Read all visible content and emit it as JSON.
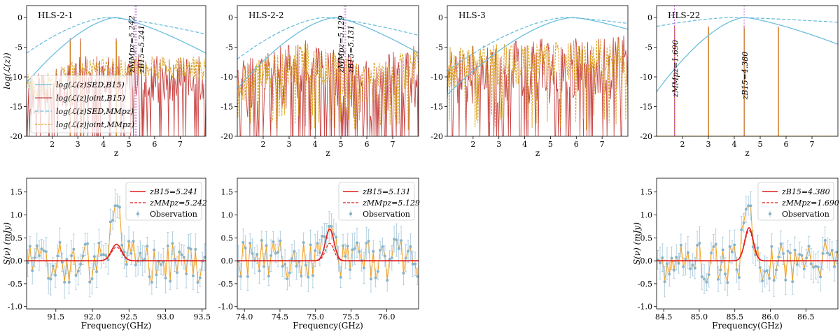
{
  "chart_data": [
    {
      "type": "line",
      "panel": "top",
      "name": "HLS-2-1",
      "xlabel": "z",
      "ylabel": "log(ℒ(z))",
      "xlim": [
        1.0,
        8.0
      ],
      "ylim": [
        -20,
        2
      ],
      "xticks": [
        2,
        3,
        4,
        5,
        6,
        7
      ],
      "yticks": [
        0,
        -5,
        -10,
        -15,
        -20
      ],
      "annotations": [
        {
          "text": "zMMpz=5.242",
          "z": 5.242
        },
        {
          "text": "zB15=5.241",
          "z": 5.241
        }
      ],
      "legend": [
        "log(ℒ(z)SED,B15)",
        "log(ℒ(z)joint,B15)",
        "log(ℒ(z)SED,MMpz)",
        "log(ℒ(z)joint,MMpz)"
      ],
      "legend_position": "lower-left",
      "sed_b15": {
        "peak": 4.5,
        "lo_at_1": -11,
        "hi_at_8": -6
      },
      "sed_mmpz": {
        "peak": 4.2,
        "lo_at_1": -6,
        "hi_at_8": -2.8
      },
      "joint_mmpz_level": -9.5,
      "joint_b15_level": -12,
      "spikes": [
        2.7,
        3.1,
        4.5
      ]
    },
    {
      "type": "line",
      "panel": "top",
      "name": "HLS-2-2",
      "xlabel": "z",
      "xlim": [
        1.0,
        8.0
      ],
      "ylim": [
        -20,
        2
      ],
      "xticks": [
        2,
        3,
        4,
        5,
        6,
        7
      ],
      "yticks": [
        0,
        -5,
        -10,
        -15,
        -20
      ],
      "annotations": [
        {
          "text": "zMMpz=5.129",
          "z": 5.129
        },
        {
          "text": "zB15=5.131",
          "z": 5.131
        }
      ],
      "sed_b15": {
        "peak": 4.8,
        "lo_at_1": -12,
        "hi_at_8": -6
      },
      "sed_mmpz": {
        "peak": 4.4,
        "lo_at_1": -7,
        "hi_at_8": -3
      }
    },
    {
      "type": "line",
      "panel": "top",
      "name": "HLS-3",
      "xlabel": "z",
      "xlim": [
        1.0,
        8.0
      ],
      "ylim": [
        -20,
        2
      ],
      "xticks": [
        2,
        3,
        4,
        5,
        6,
        7
      ],
      "yticks": [
        0,
        -5,
        -10,
        -15,
        -20
      ],
      "annotations": [],
      "sed_b15": {
        "peak": 5.9,
        "lo_at_1": -13,
        "hi_at_8": -2
      },
      "sed_mmpz": {
        "peak": 5.6,
        "lo_at_1": -9,
        "hi_at_8": -1
      }
    },
    {
      "type": "line",
      "panel": "top",
      "name": "HLS-22",
      "xlabel": "z",
      "xlim": [
        1.0,
        8.0
      ],
      "ylim": [
        -20,
        2
      ],
      "xticks": [
        2,
        3,
        4,
        5,
        6,
        7
      ],
      "yticks": [
        0,
        -5,
        -10,
        -15,
        -20
      ],
      "annotations": [
        {
          "text": "zMMpz=1.690",
          "z": 1.69
        },
        {
          "text": "zB15=4.380",
          "z": 4.38
        }
      ],
      "sed_b15": {
        "peak": 4.4,
        "lo_at_1": -12.5,
        "hi_at_8": -4.5
      },
      "sed_mmpz": {
        "peak": 4.0,
        "lo_at_1": -1.5,
        "hi_at_8": -0.8
      },
      "spikes": [
        1.69,
        3.0,
        4.38,
        5.7
      ]
    },
    {
      "type": "line",
      "panel": "bottom",
      "name": "HLS-2-1 spectrum",
      "xlabel": "Frequency(GHz)",
      "ylabel": "S(ν) (mJy)",
      "xlim": [
        91.1,
        93.55
      ],
      "ylim": [
        -1.05,
        1.8
      ],
      "xticks": [
        91.5,
        92.0,
        92.5,
        93.0,
        93.5
      ],
      "yticks": [
        1.5,
        1.0,
        0.5,
        0.0,
        -0.5,
        -1.0
      ],
      "legend": [
        "zB15=5.241",
        "zMMpz=5.242",
        "Observation"
      ],
      "legend_position": "top-right",
      "line_center": 92.33,
      "line_amp_b15": 0.36,
      "line_amp_mmpz": 0.3,
      "line_sigma": 0.07,
      "obs_peak": 1.2
    },
    {
      "type": "line",
      "panel": "bottom",
      "name": "HLS-2-2 spectrum",
      "xlabel": "Frequency(GHz)",
      "xlim": [
        73.9,
        76.45
      ],
      "ylim": [
        -1.05,
        1.8
      ],
      "xticks": [
        74.0,
        74.5,
        75.0,
        75.5,
        76.0
      ],
      "yticks": [
        1.5,
        1.0,
        0.5,
        0.0,
        -0.5,
        -1.0
      ],
      "legend": [
        "zB15=5.131",
        "zMMpz=5.129",
        "Observation"
      ],
      "legend_position": "top-right",
      "line_center": 75.2,
      "line_amp_b15": 0.69,
      "line_amp_mmpz": 0.38,
      "line_sigma": 0.06,
      "obs_peak": 0.75
    },
    {
      "type": "line",
      "panel": "bottom",
      "name": "HLS-22 spectrum",
      "xlabel": "Frequency(GHz)",
      "ylabel": "S(ν) (mJy)",
      "xlim": [
        84.4,
        86.95
      ],
      "ylim": [
        -1.05,
        1.8
      ],
      "xticks": [
        84.5,
        85.0,
        85.5,
        86.0,
        86.5
      ],
      "yticks": [
        1.5,
        1.0,
        0.5,
        0.0,
        -0.5,
        -1.0
      ],
      "legend": [
        "zB15=4.380",
        "zMMpz=1.690",
        "Observation"
      ],
      "legend_position": "top-right",
      "line_center": 85.7,
      "line_amp_b15": 0.72,
      "line_amp_mmpz": 0.66,
      "line_sigma": 0.06,
      "obs_peak": 1.2
    }
  ],
  "colors": {
    "sed": "#6bbfdd",
    "joint_b15": "#c84646",
    "joint_mmpz": "#d9a21e",
    "model": "#e11d1d",
    "obs_line": "#f0a020",
    "obs_point": "#8ab4c8",
    "obs_err": "#a8c8da",
    "zmarker": "#c66bd6"
  }
}
